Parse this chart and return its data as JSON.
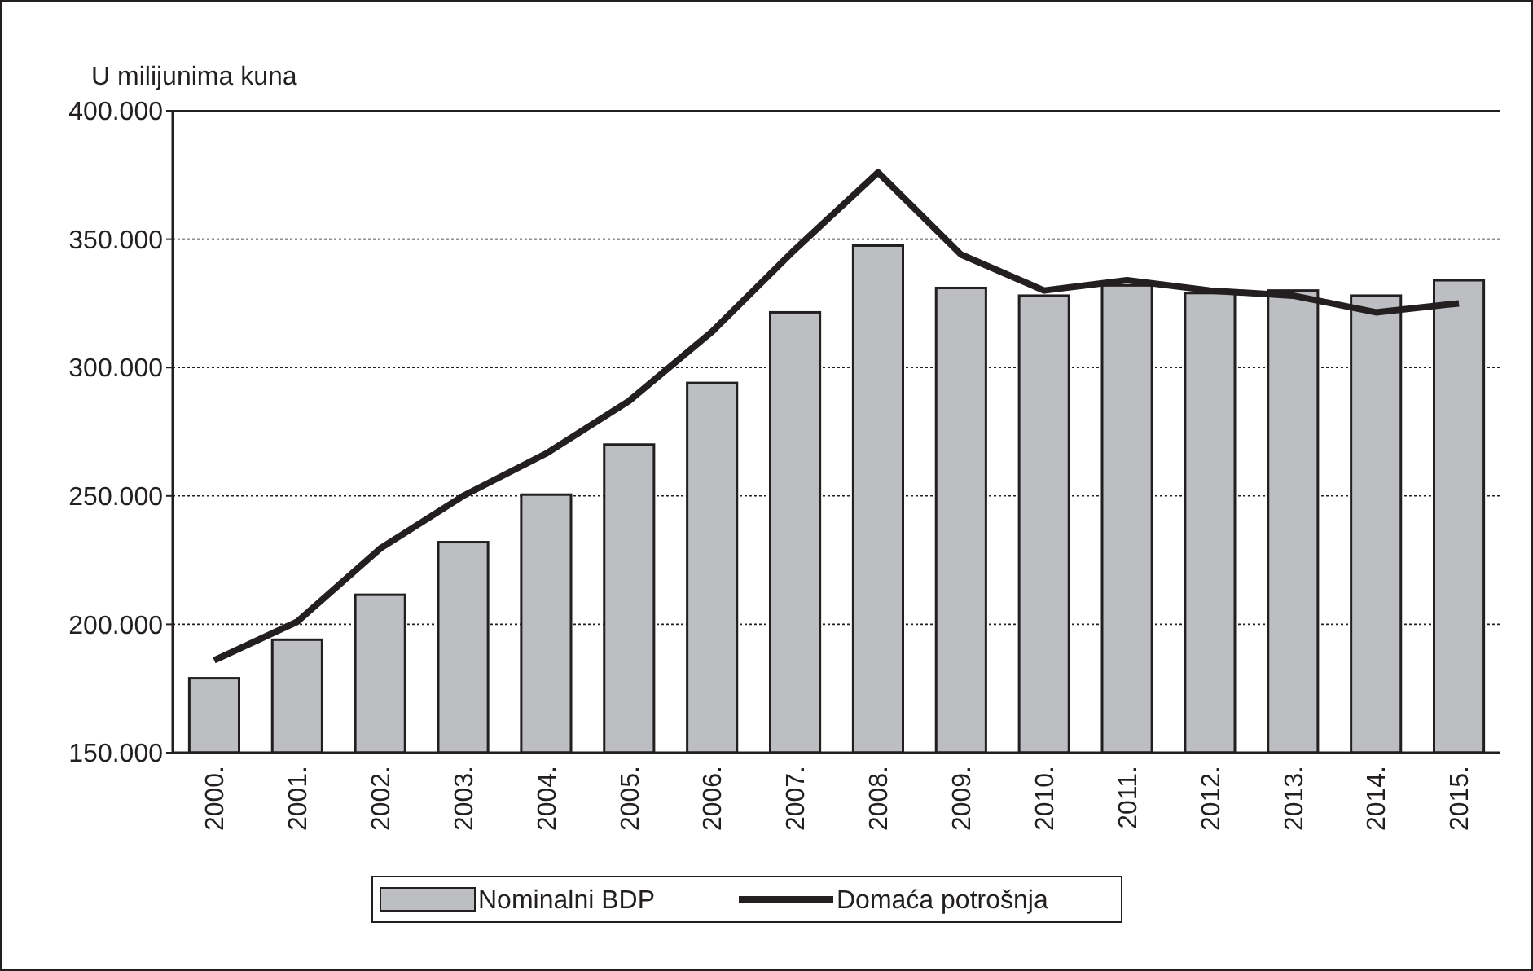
{
  "chart_data": {
    "type": "bar",
    "ylabel": "U milijunima kuna",
    "categories": [
      "2000.",
      "2001.",
      "2002.",
      "2003.",
      "2004.",
      "2005.",
      "2006.",
      "2007.",
      "2008.",
      "2009.",
      "2010.",
      "2011.",
      "2012.",
      "2013.",
      "2014.",
      "2015."
    ],
    "series": [
      {
        "name": "Nominalni BDP",
        "color": "#bcbec2",
        "values": [
          179,
          194,
          211.5,
          232,
          250.5,
          270,
          294,
          321.5,
          347.5,
          331,
          328,
          332,
          329,
          330,
          328,
          334
        ]
      },
      {
        "name": "Domaća potrošnja",
        "type": "line",
        "color": "#231f20",
        "values": [
          186,
          201,
          229.5,
          250,
          266.5,
          287,
          314,
          346,
          376,
          344,
          330,
          334,
          330,
          328,
          321.5,
          325
        ]
      }
    ],
    "ylim": [
      150,
      400
    ],
    "yticks": [
      {
        "value": 150,
        "label": "150.000"
      },
      {
        "value": 200,
        "label": "200.000"
      },
      {
        "value": 250,
        "label": "250.000"
      },
      {
        "value": 300,
        "label": "300.000"
      },
      {
        "value": 350,
        "label": "350.000"
      },
      {
        "value": 400,
        "label": "400.000"
      }
    ],
    "grid": "y",
    "legend": "bottom",
    "line_style": "solid"
  }
}
